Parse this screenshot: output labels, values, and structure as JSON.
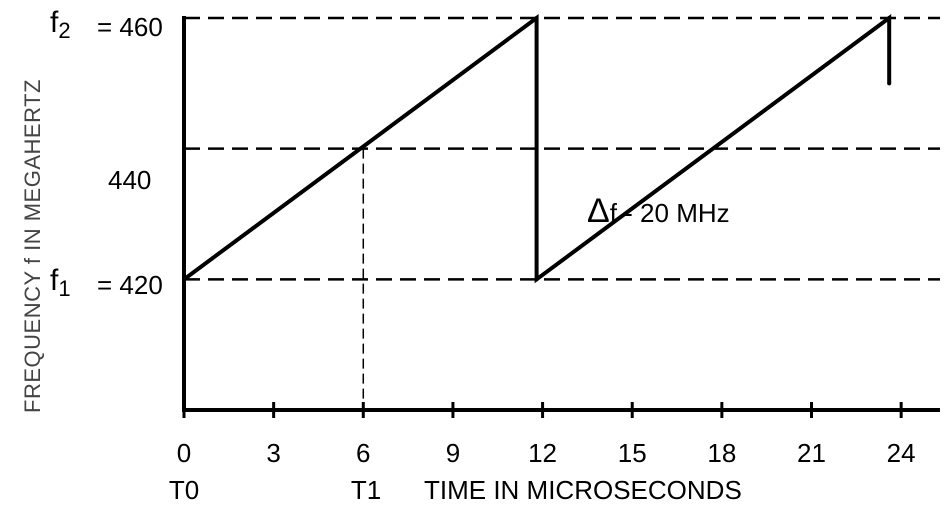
{
  "chart_data": {
    "type": "line",
    "title": "",
    "xlabel": "TIME IN MICROSECONDS",
    "ylabel": "FREQUENCY f IN MEGAHERTZ",
    "xlim": [
      0,
      25.3
    ],
    "ylim": [
      400,
      460
    ],
    "grid": false,
    "x_ticks": [
      0,
      3,
      6,
      9,
      12,
      15,
      18,
      21,
      24
    ],
    "x_tick_labels": [
      "0",
      "3",
      "6",
      "9",
      "12",
      "15",
      "18",
      "21",
      "24"
    ],
    "x_markers": {
      "T0": "T0",
      "T1": "T1"
    },
    "y_labels": {
      "f2_symbol": "f",
      "f2_sub": "2",
      "f2_value": "= 460",
      "mid_value": "440",
      "f1_symbol": "f",
      "f1_sub": "1",
      "f1_value": "= 420"
    },
    "reference_lines": [
      {
        "y": 460,
        "style": "dashed"
      },
      {
        "y": 440,
        "style": "dashed"
      },
      {
        "y": 420,
        "style": "dashed"
      },
      {
        "x": 6,
        "style": "dashed"
      }
    ],
    "series": [
      {
        "x": [
          0,
          11.8,
          11.8,
          23.6,
          23.6
        ],
        "y": [
          420,
          460,
          420,
          460,
          450
        ]
      }
    ],
    "annotations": {
      "delta_symbol": "Δ",
      "delta_text": "f - 20  MHz"
    }
  }
}
